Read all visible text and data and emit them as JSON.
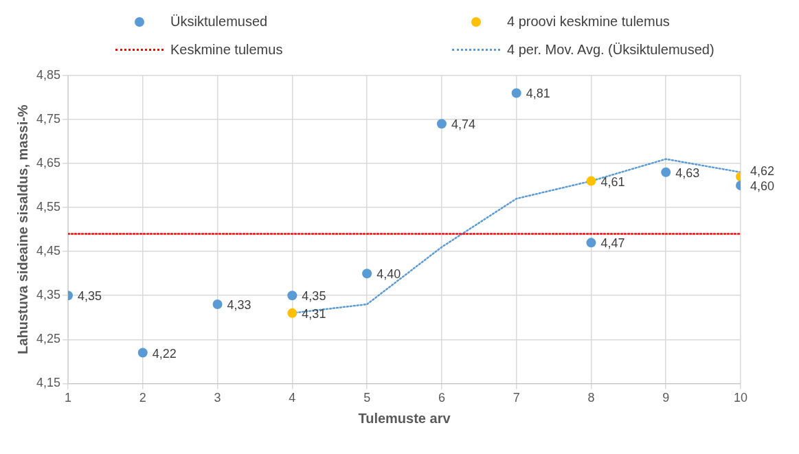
{
  "chart_data": {
    "type": "scatter",
    "xlabel": "Tulemuste arv",
    "ylabel": "Lahustuva sideaine sisaldus, massi-%",
    "xlim": [
      1,
      10
    ],
    "xticks": [
      1,
      2,
      3,
      4,
      5,
      6,
      7,
      8,
      9,
      10
    ],
    "ylim": [
      4.15,
      4.85
    ],
    "yticks": [
      {
        "value": 4.15,
        "label": "4,15"
      },
      {
        "value": 4.25,
        "label": "4,25"
      },
      {
        "value": 4.35,
        "label": "4,35"
      },
      {
        "value": 4.45,
        "label": "4,45"
      },
      {
        "value": 4.55,
        "label": "4,55"
      },
      {
        "value": 4.65,
        "label": "4,65"
      },
      {
        "value": 4.75,
        "label": "4,75"
      },
      {
        "value": 4.85,
        "label": "4,85"
      }
    ],
    "grid": true,
    "legend": "top",
    "marker": "circle",
    "series": [
      {
        "name": "Üksiktulemused",
        "type": "scatter",
        "color": "#5b9bd5",
        "x": [
          1,
          2,
          3,
          4,
          5,
          6,
          7,
          8,
          9,
          10
        ],
        "values": [
          4.35,
          4.22,
          4.33,
          4.35,
          4.4,
          4.74,
          4.81,
          4.47,
          4.63,
          4.6
        ],
        "value_labels": [
          "4,35",
          "4,22",
          "4,33",
          "4,35",
          "4,40",
          "4,74",
          "4,81",
          "4,47",
          "4,63",
          "4,60"
        ]
      },
      {
        "name": "4 proovi keskmine tulemus",
        "type": "scatter",
        "color": "#ffc000",
        "x": [
          4,
          8,
          10
        ],
        "values": [
          4.31,
          4.61,
          4.62
        ],
        "value_labels": [
          "4,31",
          "4,61",
          "4,62"
        ]
      },
      {
        "name": "4 per. Mov. Avg. (Üksiktulemused)",
        "type": "line",
        "color": "#5b9bd5",
        "line_style": "dotted",
        "marker": "none",
        "x": [
          4,
          5,
          6,
          7,
          8,
          9,
          10
        ],
        "values": [
          4.31,
          4.33,
          4.46,
          4.57,
          4.61,
          4.66,
          4.63
        ]
      }
    ],
    "ref_lines": [
      {
        "axis": "y",
        "value": 4.49,
        "label": "Keskmine tulemus",
        "color": "#ff0000",
        "line_style": "dotted"
      }
    ]
  }
}
